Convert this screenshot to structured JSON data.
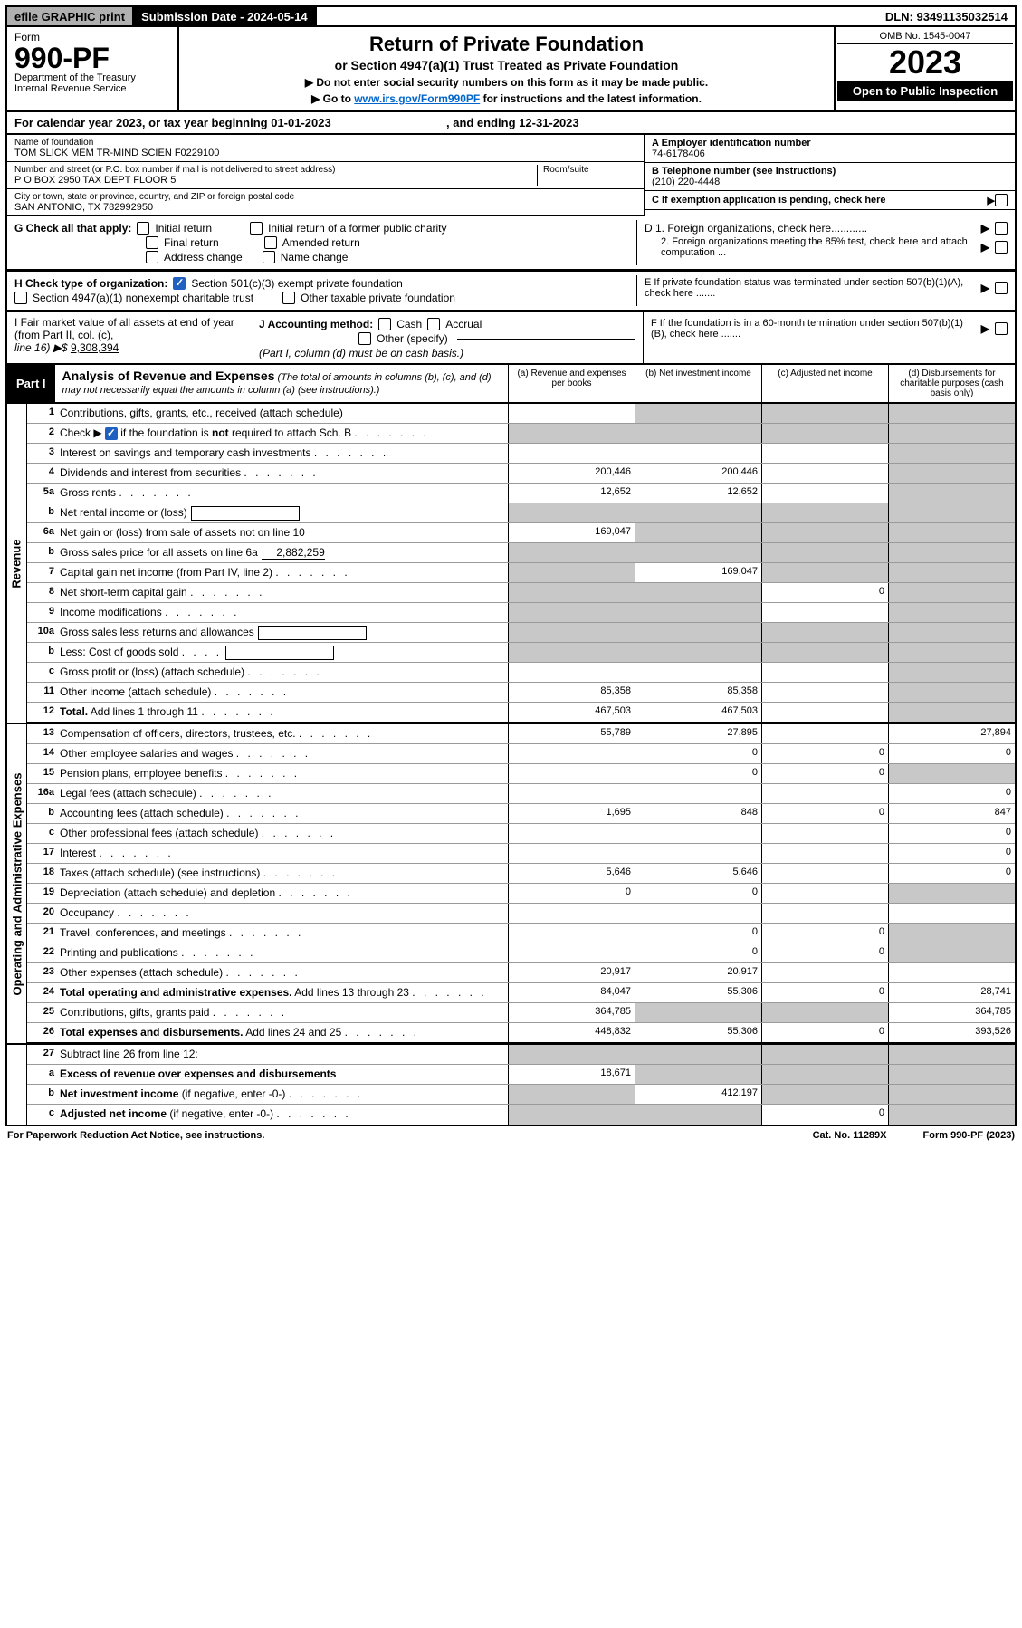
{
  "topbar": {
    "efile": "efile GRAPHIC print",
    "submission": "Submission Date - 2024-05-14",
    "dln": "DLN: 93491135032514"
  },
  "header": {
    "form_label": "Form",
    "form_no": "990-PF",
    "dept1": "Department of the Treasury",
    "dept2": "Internal Revenue Service",
    "title": "Return of Private Foundation",
    "sub1": "or Section 4947(a)(1) Trust Treated as Private Foundation",
    "sub2a": "▶ Do not enter social security numbers on this form as it may be made public.",
    "sub2b_pre": "▶ Go to ",
    "sub2b_link": "www.irs.gov/Form990PF",
    "sub2b_post": " for instructions and the latest information.",
    "omb": "OMB No. 1545-0047",
    "year": "2023",
    "open": "Open to Public Inspection"
  },
  "cal": {
    "line_a": "For calendar year 2023, or tax year beginning 01-01-2023",
    "line_b": ", and ending 12-31-2023"
  },
  "ident": {
    "name_lbl": "Name of foundation",
    "name": "TOM SLICK MEM TR-MIND SCIEN F0229100",
    "addr_lbl": "Number and street (or P.O. box number if mail is not delivered to street address)",
    "addr": "P O BOX 2950 TAX DEPT FLOOR 5",
    "room_lbl": "Room/suite",
    "city_lbl": "City or town, state or province, country, and ZIP or foreign postal code",
    "city": "SAN ANTONIO, TX  782992950",
    "a_lbl": "A Employer identification number",
    "a_val": "74-6178406",
    "b_lbl": "B Telephone number (see instructions)",
    "b_val": "(210) 220-4448",
    "c_lbl": "C If exemption application is pending, check here"
  },
  "g": {
    "label": "G Check all that apply:",
    "opts": [
      "Initial return",
      "Final return",
      "Address change",
      "Initial return of a former public charity",
      "Amended return",
      "Name change"
    ]
  },
  "h": {
    "label": "H Check type of organization:",
    "o1": "Section 501(c)(3) exempt private foundation",
    "o2": "Section 4947(a)(1) nonexempt charitable trust",
    "o3": "Other taxable private foundation"
  },
  "d": {
    "d1": "D 1. Foreign organizations, check here............",
    "d2": "2. Foreign organizations meeting the 85% test, check here and attach computation ...",
    "e": "E  If private foundation status was terminated under section 507(b)(1)(A), check here .......",
    "f": "F  If the foundation is in a 60-month termination under section 507(b)(1)(B), check here ......."
  },
  "ij": {
    "i1": "I Fair market value of all assets at end of year (from Part II, col. (c),",
    "i2_pre": "line 16) ▶$ ",
    "i2_val": "9,308,394",
    "j1": "J Accounting method:",
    "j_cash": "Cash",
    "j_acc": "Accrual",
    "j_other": "Other (specify)",
    "j_note": "(Part I, column (d) must be on cash basis.)"
  },
  "part1": {
    "tag": "Part I",
    "title": "Analysis of Revenue and Expenses",
    "title_note": " (The total of amounts in columns (b), (c), and (d) may not necessarily equal the amounts in column (a) (see instructions).)",
    "col_a": "(a)   Revenue and expenses per books",
    "col_b": "(b)   Net investment income",
    "col_c": "(c)  Adjusted net income",
    "col_d": "(d)  Disbursements for charitable purposes (cash basis only)"
  },
  "side": {
    "rev": "Revenue",
    "exp": "Operating and Administrative Expenses"
  },
  "rows": {
    "r1": {
      "n": "1",
      "l": "Contributions, gifts, grants, etc., received (attach schedule)"
    },
    "r2": {
      "n": "2",
      "l_pre": "Check ▶ ",
      "l_post": " if the foundation is <b>not</b> required to attach Sch. B"
    },
    "r3": {
      "n": "3",
      "l": "Interest on savings and temporary cash investments"
    },
    "r4": {
      "n": "4",
      "l": "Dividends and interest from securities",
      "a": "200,446",
      "b": "200,446"
    },
    "r5a": {
      "n": "5a",
      "l": "Gross rents",
      "a": "12,652",
      "b": "12,652"
    },
    "r5b": {
      "n": "b",
      "l": "Net rental income or (loss)"
    },
    "r6a": {
      "n": "6a",
      "l": "Net gain or (loss) from sale of assets not on line 10",
      "a": "169,047"
    },
    "r6b": {
      "n": "b",
      "l_pre": "Gross sales price for all assets on line 6a",
      "val": "2,882,259"
    },
    "r7": {
      "n": "7",
      "l": "Capital gain net income (from Part IV, line 2)",
      "b": "169,047"
    },
    "r8": {
      "n": "8",
      "l": "Net short-term capital gain",
      "c": "0"
    },
    "r9": {
      "n": "9",
      "l": "Income modifications"
    },
    "r10a": {
      "n": "10a",
      "l": "Gross sales less returns and allowances"
    },
    "r10b": {
      "n": "b",
      "l": "Less: Cost of goods sold"
    },
    "r10c": {
      "n": "c",
      "l": "Gross profit or (loss) (attach schedule)"
    },
    "r11": {
      "n": "11",
      "l": "Other income (attach schedule)",
      "a": "85,358",
      "b": "85,358"
    },
    "r12": {
      "n": "12",
      "l": "<b>Total.</b> Add lines 1 through 11",
      "a": "467,503",
      "b": "467,503"
    },
    "r13": {
      "n": "13",
      "l": "Compensation of officers, directors, trustees, etc.",
      "a": "55,789",
      "b": "27,895",
      "d": "27,894"
    },
    "r14": {
      "n": "14",
      "l": "Other employee salaries and wages",
      "b": "0",
      "c": "0",
      "d": "0"
    },
    "r15": {
      "n": "15",
      "l": "Pension plans, employee benefits",
      "b": "0",
      "c": "0"
    },
    "r16a": {
      "n": "16a",
      "l": "Legal fees (attach schedule)",
      "d": "0"
    },
    "r16b": {
      "n": "b",
      "l": "Accounting fees (attach schedule)",
      "a": "1,695",
      "b": "848",
      "c": "0",
      "d": "847"
    },
    "r16c": {
      "n": "c",
      "l": "Other professional fees (attach schedule)",
      "d": "0"
    },
    "r17": {
      "n": "17",
      "l": "Interest",
      "d": "0"
    },
    "r18": {
      "n": "18",
      "l": "Taxes (attach schedule) (see instructions)",
      "a": "5,646",
      "b": "5,646",
      "d": "0"
    },
    "r19": {
      "n": "19",
      "l": "Depreciation (attach schedule) and depletion",
      "a": "0",
      "b": "0"
    },
    "r20": {
      "n": "20",
      "l": "Occupancy"
    },
    "r21": {
      "n": "21",
      "l": "Travel, conferences, and meetings",
      "b": "0",
      "c": "0"
    },
    "r22": {
      "n": "22",
      "l": "Printing and publications",
      "b": "0",
      "c": "0"
    },
    "r23": {
      "n": "23",
      "l": "Other expenses (attach schedule)",
      "a": "20,917",
      "b": "20,917"
    },
    "r24": {
      "n": "24",
      "l": "<b>Total operating and administrative expenses.</b> Add lines 13 through 23",
      "a": "84,047",
      "b": "55,306",
      "c": "0",
      "d": "28,741"
    },
    "r25": {
      "n": "25",
      "l": "Contributions, gifts, grants paid",
      "a": "364,785",
      "d": "364,785"
    },
    "r26": {
      "n": "26",
      "l": "<b>Total expenses and disbursements.</b> Add lines 24 and 25",
      "a": "448,832",
      "b": "55,306",
      "c": "0",
      "d": "393,526"
    },
    "r27": {
      "n": "27",
      "l": "Subtract line 26 from line 12:"
    },
    "r27a": {
      "n": "a",
      "l": "<b>Excess of revenue over expenses and disbursements</b>",
      "a": "18,671"
    },
    "r27b": {
      "n": "b",
      "l": "<b>Net investment income</b> (if negative, enter -0-)",
      "b": "412,197"
    },
    "r27c": {
      "n": "c",
      "l": "<b>Adjusted net income</b> (if negative, enter -0-)",
      "c": "0"
    }
  },
  "footer": {
    "left": "For Paperwork Reduction Act Notice, see instructions.",
    "mid": "Cat. No. 11289X",
    "right": "Form 990-PF (2023)"
  },
  "colors": {
    "shade": "#c8c8c8",
    "check_blue": "#2060c0"
  }
}
